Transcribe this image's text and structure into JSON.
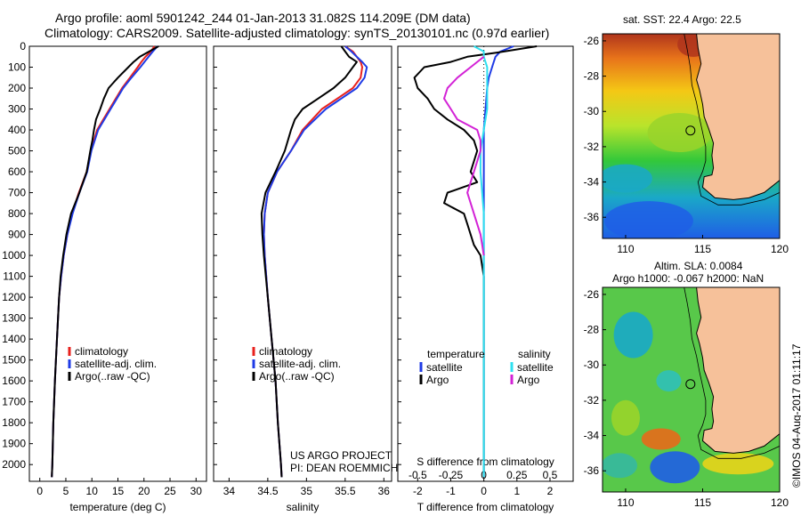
{
  "header": {
    "line1": "Argo profile: aoml 5901242_244 01-Jan-2013 31.082S 114.209E (DM data)",
    "line2": "Climatology: CARS2009. Satellite-adjusted climatology: synTS_20130101.nc (0.97d earlier)"
  },
  "colors": {
    "climatology": "#e8211d",
    "satellite": "#1f3be6",
    "argo": "#000000",
    "salinity_satellite": "#2ee0f0",
    "salinity_argo": "#d323d6",
    "land": "#f6c19a",
    "coast": "#000000"
  },
  "credits": {
    "project_line1": "US ARGO PROJECT",
    "project_line2": "PI: DEAN ROEMMICH",
    "imos": "©IMOS 04-Aug-2017 01:11:17"
  },
  "maps": {
    "sst_title": "sat. SST: 22.4 Argo: 22.5",
    "sla_title1": "Altim. SLA: 0.0084",
    "sla_title2": "Argo h1000: -0.067 h2000: NaN",
    "float_position": {
      "lon": 114.209,
      "lat": -31.082
    },
    "xlim": [
      108.5,
      120
    ],
    "ylim": [
      -37.2,
      -25.6
    ],
    "xticks": [
      110,
      115,
      120
    ],
    "yticks": [
      -26,
      -28,
      -30,
      -32,
      -34,
      -36
    ]
  },
  "chart_data": [
    {
      "type": "line",
      "xlabel": "temperature (deg C)",
      "ylabel": "",
      "xlim": [
        -2,
        32
      ],
      "ylim": [
        2080,
        0
      ],
      "xticks": [
        0,
        5,
        10,
        15,
        20,
        25,
        30
      ],
      "yticks": [
        0,
        100,
        200,
        300,
        400,
        500,
        600,
        700,
        800,
        900,
        1000,
        1100,
        1200,
        1300,
        1400,
        1500,
        1600,
        1700,
        1800,
        1900,
        2000
      ],
      "legend": [
        "climatology",
        "satellite-adj. clim.",
        "Argo(..raw -QC)"
      ],
      "legend_position": "lower-center",
      "series": [
        {
          "name": "climatology",
          "color": "#e8211d",
          "depth": [
            0,
            25,
            50,
            75,
            100,
            150,
            200,
            300,
            400,
            500,
            600,
            700,
            800,
            900,
            1000,
            1100,
            1200,
            1400,
            1600,
            1800,
            2000,
            2060
          ],
          "values": [
            22.0,
            21.3,
            20.3,
            19.5,
            18.8,
            17.3,
            15.8,
            13.4,
            11.0,
            9.8,
            9.0,
            7.5,
            6.2,
            5.3,
            4.6,
            4.1,
            3.7,
            3.3,
            2.9,
            2.6,
            2.4,
            2.3
          ]
        },
        {
          "name": "satellite-adj. clim.",
          "color": "#1f3be6",
          "depth": [
            0,
            25,
            50,
            75,
            100,
            150,
            200,
            300,
            400,
            500,
            600,
            700,
            800,
            900,
            1000,
            1100,
            1200,
            1400,
            1600,
            1800,
            2000,
            2060
          ],
          "values": [
            22.6,
            21.7,
            20.9,
            20.1,
            19.3,
            17.6,
            16.0,
            13.6,
            11.2,
            9.9,
            9.1,
            7.6,
            6.3,
            5.3,
            4.6,
            4.1,
            3.7,
            3.3,
            2.9,
            2.6,
            2.4,
            2.3
          ]
        },
        {
          "name": "Argo(..raw -QC)",
          "color": "#000000",
          "depth": [
            0,
            25,
            50,
            75,
            100,
            150,
            200,
            250,
            300,
            350,
            400,
            450,
            500,
            600,
            700,
            800,
            900,
            1000,
            1100,
            1200,
            1400,
            1600,
            1800,
            2000,
            2060
          ],
          "values": [
            22.8,
            21.0,
            19.2,
            18.0,
            17.0,
            15.0,
            13.2,
            12.3,
            11.6,
            10.8,
            10.4,
            10.1,
            9.7,
            9.0,
            7.6,
            6.0,
            5.1,
            4.5,
            4.0,
            3.7,
            3.3,
            2.9,
            2.6,
            2.4,
            2.3
          ]
        }
      ]
    },
    {
      "type": "line",
      "xlabel": "salinity",
      "ylabel": "",
      "xlim": [
        33.8,
        36.1
      ],
      "ylim": [
        2080,
        0
      ],
      "xticks": [
        34,
        34.5,
        35,
        35.5,
        36
      ],
      "legend": [
        "climatology",
        "satellite-adj. clim.",
        "Argo(..raw -QC)"
      ],
      "legend_position": "lower-center",
      "series": [
        {
          "name": "climatology",
          "color": "#e8211d",
          "depth": [
            0,
            25,
            50,
            75,
            100,
            150,
            200,
            300,
            400,
            500,
            600,
            700,
            800,
            900,
            1000,
            1200,
            1400,
            1600,
            1800,
            2000,
            2060
          ],
          "values": [
            35.5,
            35.6,
            35.65,
            35.7,
            35.72,
            35.7,
            35.6,
            35.2,
            34.95,
            34.8,
            34.62,
            34.5,
            34.46,
            34.45,
            34.46,
            34.5,
            34.55,
            34.6,
            34.63,
            34.67,
            34.68
          ]
        },
        {
          "name": "satellite-adj. clim.",
          "color": "#1f3be6",
          "depth": [
            0,
            25,
            50,
            75,
            100,
            150,
            200,
            300,
            400,
            500,
            600,
            700,
            800,
            900,
            1000,
            1200,
            1400,
            1600,
            1800,
            2000,
            2060
          ],
          "values": [
            35.5,
            35.58,
            35.65,
            35.72,
            35.78,
            35.75,
            35.65,
            35.25,
            34.97,
            34.8,
            34.62,
            34.5,
            34.46,
            34.45,
            34.46,
            34.5,
            34.55,
            34.6,
            34.63,
            34.67,
            34.68
          ]
        },
        {
          "name": "Argo(..raw -QC)",
          "color": "#000000",
          "depth": [
            0,
            25,
            50,
            75,
            100,
            150,
            200,
            250,
            300,
            350,
            400,
            450,
            500,
            600,
            700,
            800,
            900,
            1000,
            1200,
            1400,
            1600,
            1800,
            2000,
            2060
          ],
          "values": [
            35.45,
            35.5,
            35.55,
            35.65,
            35.6,
            35.5,
            35.35,
            35.15,
            34.95,
            34.85,
            34.8,
            34.76,
            34.72,
            34.6,
            34.47,
            34.42,
            34.43,
            34.45,
            34.5,
            34.55,
            34.6,
            34.63,
            34.67,
            34.68
          ]
        }
      ]
    },
    {
      "type": "line",
      "xlabel": "T difference from climatology",
      "ylabel": "",
      "top_xlabel": "S difference from climatology",
      "xlim": [
        -2.6,
        2.7
      ],
      "ylim": [
        2080,
        0
      ],
      "xticks": [
        -2,
        -1,
        0,
        1,
        2
      ],
      "top_xticks": [
        "-0.5",
        "-0.25",
        "0",
        "0.25",
        "0.5"
      ],
      "legend_left_title": "temperature",
      "legend_right_title": "salinity",
      "legend_left": [
        "satellite",
        "Argo"
      ],
      "legend_right": [
        "satellite",
        "Argo"
      ],
      "series": [
        {
          "name": "temperature satellite",
          "color": "#1f3be6",
          "depth": [
            0,
            25,
            50,
            75,
            100,
            150,
            200,
            300,
            400,
            500,
            600,
            700,
            800,
            900,
            1000,
            1200,
            1400,
            1600,
            1800,
            2000,
            2060
          ],
          "values": [
            0.9,
            0.5,
            0.35,
            0.3,
            0.25,
            0.15,
            0.1,
            0.05,
            0.0,
            0.0,
            0.0,
            0.0,
            0.0,
            0.0,
            0.0,
            0.0,
            0.0,
            0.0,
            0.0,
            0.0,
            0.0
          ]
        },
        {
          "name": "temperature Argo",
          "color": "#000000",
          "depth": [
            0,
            10,
            30,
            50,
            75,
            100,
            150,
            200,
            250,
            300,
            350,
            400,
            450,
            500,
            550,
            600,
            650,
            700,
            750,
            800,
            850,
            900,
            950,
            1000,
            1100,
            1150,
            1200,
            1300,
            1400,
            1600,
            1800,
            2000,
            2060
          ],
          "values": [
            1.6,
            1.2,
            0.4,
            -0.5,
            -1.0,
            -1.8,
            -2.1,
            -2.0,
            -1.7,
            -1.5,
            -1.1,
            -0.6,
            -0.3,
            -0.2,
            -0.3,
            -0.4,
            -0.2,
            -1.1,
            -1.2,
            -0.6,
            -0.5,
            -0.4,
            -0.3,
            -0.1,
            0.0,
            0.0,
            0.0,
            0.0,
            0.0,
            0.0,
            0.0,
            0.0,
            0.0
          ]
        },
        {
          "name": "salinity satellite",
          "color": "#2ee0f0",
          "depth": [
            0,
            25,
            50,
            100,
            150,
            200,
            300,
            400,
            500,
            600,
            800,
            1000,
            1200,
            1400,
            1600,
            1800,
            2000,
            2060
          ],
          "values": [
            -0.3,
            0.0,
            0.0,
            0.1,
            0.1,
            0.1,
            0.1,
            0.0,
            -0.1,
            -0.1,
            0.0,
            0.0,
            0.0,
            0.0,
            0.0,
            0.0,
            0.0,
            0.0
          ]
        },
        {
          "name": "salinity Argo",
          "color": "#d323d6",
          "depth": [
            50,
            75,
            100,
            150,
            200,
            250,
            300,
            350,
            400,
            450,
            500,
            550,
            600,
            650,
            700,
            750,
            800,
            850,
            900,
            950,
            1000
          ],
          "values": [
            0.0,
            -0.2,
            -0.4,
            -0.8,
            -1.1,
            -1.2,
            -1.0,
            -0.8,
            -0.2,
            -0.1,
            -0.1,
            -0.2,
            -0.3,
            -0.4,
            -0.5,
            -0.4,
            -0.3,
            -0.2,
            -0.1,
            -0.05,
            0.0
          ]
        }
      ]
    }
  ]
}
